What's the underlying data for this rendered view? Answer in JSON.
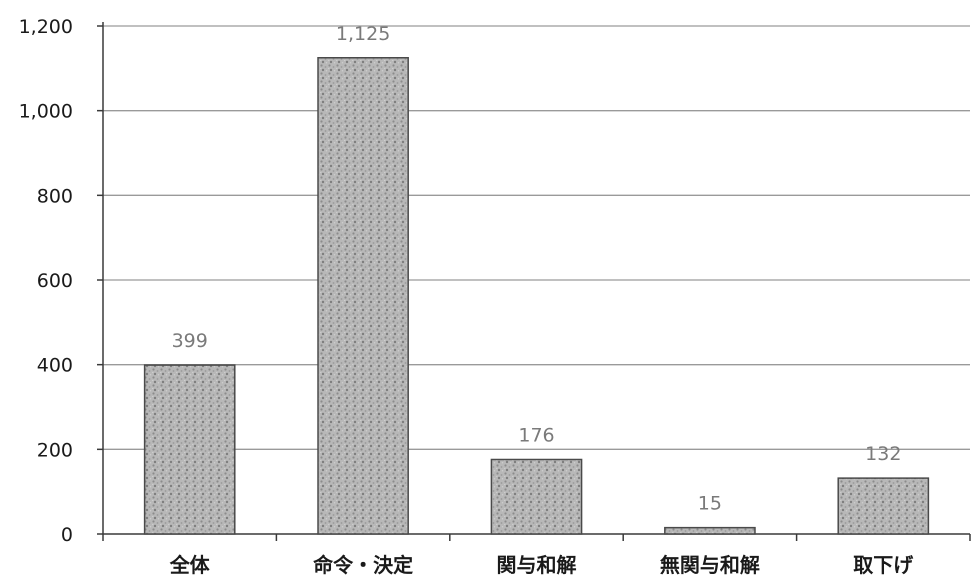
{
  "chart_data": {
    "type": "bar",
    "categories": [
      "全体",
      "命令・決定",
      "関与和解",
      "無関与和解",
      "取下げ"
    ],
    "values": [
      399,
      1125,
      176,
      15,
      132
    ],
    "data_labels": [
      "399",
      "1,125",
      "176",
      "15",
      "132"
    ],
    "title": "",
    "xlabel": "",
    "ylabel": "",
    "ylim": [
      0,
      1200
    ],
    "y_ticks": [
      0,
      200,
      400,
      600,
      800,
      1000,
      1200
    ],
    "y_tick_labels": [
      "0",
      "200",
      "400",
      "600",
      "800",
      "1,000",
      "1,200"
    ],
    "grid": true,
    "legend": "none",
    "colors": {
      "bar_fill": "#b8b8b8",
      "bar_texture": "#8c8c8c",
      "bar_stroke": "#4a4a4a",
      "grid": "#9a9a9a",
      "data_label": "#7a7a7a"
    }
  }
}
